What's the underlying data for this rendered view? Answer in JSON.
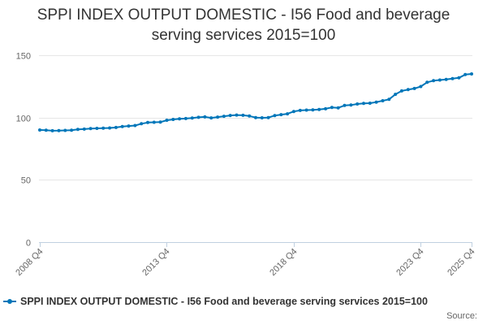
{
  "chart_data": {
    "type": "line",
    "title": "SPPI INDEX OUTPUT DOMESTIC - I56 Food and beverage serving services 2015=100",
    "xlabel": "",
    "ylabel": "",
    "ylim": [
      0,
      150
    ],
    "yticks": [
      0,
      50,
      100,
      150
    ],
    "xtick_labels": [
      "2008 Q4",
      "2013 Q4",
      "2018 Q4",
      "2023 Q4",
      "2025 Q4"
    ],
    "x_start_year": 2008,
    "x_start_quarter": 4,
    "series": [
      {
        "name": "SPPI INDEX OUTPUT DOMESTIC - I56 Food and beverage serving services 2015=100",
        "color": "#0076b9",
        "values": [
          90.0,
          89.9,
          89.4,
          89.5,
          89.7,
          89.9,
          90.5,
          90.7,
          91.1,
          91.3,
          91.5,
          91.6,
          92.0,
          92.8,
          93.2,
          93.6,
          95.0,
          96.0,
          96.2,
          96.3,
          97.8,
          98.5,
          99.0,
          99.2,
          99.6,
          100.2,
          100.5,
          99.7,
          100.4,
          101.0,
          101.7,
          102.0,
          101.8,
          101.2,
          100.0,
          99.8,
          100.0,
          101.6,
          102.3,
          103.0,
          104.9,
          105.7,
          106.0,
          106.2,
          106.5,
          107.0,
          108.1,
          107.8,
          109.7,
          110.0,
          110.9,
          111.4,
          111.5,
          112.4,
          113.5,
          114.6,
          118.6,
          121.4,
          122.4,
          123.3,
          124.9,
          128.3,
          129.6,
          130.1,
          130.6,
          131.3,
          131.9,
          134.5,
          135.0
        ]
      }
    ],
    "legend": {
      "label": "SPPI INDEX OUTPUT DOMESTIC - I56 Food and beverage serving services 2015=100",
      "position": "bottom"
    },
    "source_label": "Source:",
    "grid": true
  }
}
